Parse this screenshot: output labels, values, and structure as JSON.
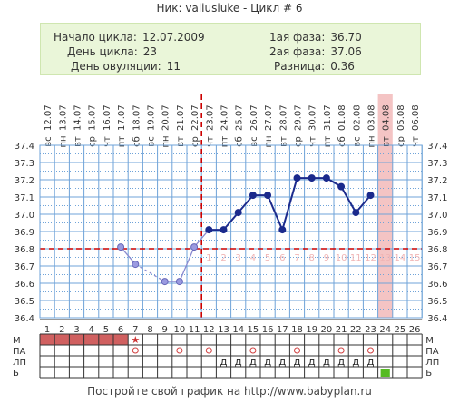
{
  "header": {
    "title": "Ник: valiusiuke - Цикл # 6",
    "cycle_start_label": "Начало цикла:",
    "cycle_start_value": "12.07.2009",
    "cycle_day_label": "День цикла:",
    "cycle_day_value": "23",
    "ovulation_day_label": "День овуляции:",
    "ovulation_day_value": "11",
    "phase1_label": "1ая фаза:",
    "phase1_value": "36.70",
    "phase2_label": "2ая фаза:",
    "phase2_value": "37.06",
    "difference_label": "Разница:",
    "difference_value": "0.36"
  },
  "footer": {
    "text": "Постройте свой график на http://www.babyplan.ru"
  },
  "colors": {
    "grid": "#6fa3d8",
    "line": "#1b2a8c",
    "line_early": "#8a8ad0",
    "coverline": "#cc0000",
    "menses": "#d06060",
    "green": "#55bb22",
    "pink": "#f4c4c4"
  },
  "chart_data": {
    "type": "line",
    "title": "",
    "days": [
      1,
      2,
      3,
      4,
      5,
      6,
      7,
      8,
      9,
      10,
      11,
      12,
      13,
      14,
      15,
      16,
      17,
      18,
      19,
      20,
      21,
      22,
      23,
      24,
      25,
      26
    ],
    "dates": [
      "12.07",
      "13.07",
      "14.07",
      "15.07",
      "16.07",
      "17.07",
      "18.07",
      "19.07",
      "20.07",
      "21.07",
      "22.07",
      "23.07",
      "24.07",
      "25.07",
      "26.07",
      "27.07",
      "28.07",
      "29.07",
      "30.07",
      "31.07",
      "01.08",
      "02.08",
      "03.08",
      "04.08",
      "05.08",
      "06.08"
    ],
    "weekdays": [
      "вс",
      "пн",
      "вт",
      "ср",
      "чт",
      "пт",
      "сб",
      "вс",
      "пн",
      "вт",
      "ср",
      "чт",
      "пт",
      "сб",
      "вс",
      "пн",
      "вт",
      "ср",
      "чт",
      "пт",
      "сб",
      "вс",
      "пн",
      "вт",
      "ср",
      "чт"
    ],
    "ylim": [
      36.4,
      37.4
    ],
    "yticks": [
      "37.4",
      "37.3",
      "37.2",
      "37.1",
      "37.0",
      "36.9",
      "36.8",
      "36.7",
      "36.6",
      "36.5",
      "36.4"
    ],
    "temperatures": [
      null,
      null,
      null,
      null,
      null,
      36.81,
      36.71,
      null,
      36.61,
      36.61,
      36.81,
      36.91,
      36.91,
      37.01,
      37.11,
      37.11,
      36.91,
      37.21,
      37.21,
      37.21,
      37.16,
      37.01,
      37.11,
      null,
      null,
      null
    ],
    "coverline": 36.8,
    "ovulation_day": 11,
    "current_day": 24,
    "post_ovulation_day_numbers": [
      "1",
      "2",
      "3",
      "4",
      "5",
      "6",
      "7",
      "8",
      "9",
      "10",
      "11",
      "12",
      "13",
      "14",
      "15"
    ],
    "row_labels": [
      "М",
      "ПА",
      "ЛП",
      "Б"
    ],
    "menses_days": [
      1,
      2,
      3,
      4,
      5,
      6
    ],
    "star_day": 7,
    "pa_days": [
      7,
      10,
      12,
      15,
      18,
      21,
      23
    ],
    "lp_days": [
      13,
      14,
      15,
      16,
      17,
      18,
      19,
      20,
      21,
      22,
      23
    ],
    "lp_mark": "Д",
    "b_days": [
      24
    ],
    "moon_icon": "crescent-moon-icon"
  }
}
